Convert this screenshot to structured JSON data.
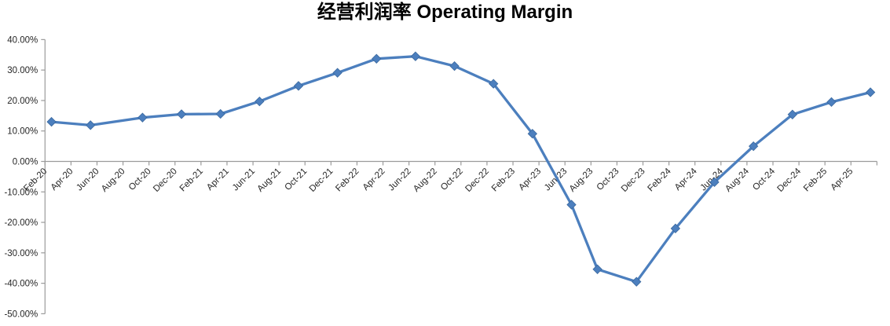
{
  "chart_data": {
    "type": "line",
    "title": "经营利润率 Operating Margin",
    "legend": "none",
    "grid": "off",
    "marker": "diamond",
    "line_color": "#4C7FBE",
    "marker_edge_color": "#3A689E",
    "axis_color": "#9b9b9b",
    "text_color": "#262626",
    "ylim": [
      -50,
      40
    ],
    "y_tick_step": 10,
    "y_tick_values": [
      40,
      30,
      20,
      10,
      0,
      -10,
      -20,
      -30,
      -40,
      -50
    ],
    "y_tick_labels": [
      "40.00%",
      "30.00%",
      "20.00%",
      "10.00%",
      "0.00%",
      "-10.00%",
      "-20.00%",
      "-30.00%",
      "-40.00%",
      "-50.00%"
    ],
    "x_tick_labels": [
      "Feb-20",
      "Apr-20",
      "Jun-20",
      "Aug-20",
      "Oct-20",
      "Dec-20",
      "Feb-21",
      "Apr-21",
      "Jun-21",
      "Aug-21",
      "Oct-21",
      "Dec-21",
      "Feb-22",
      "Apr-22",
      "Jun-22",
      "Aug-22",
      "Oct-22",
      "Dec-22",
      "Feb-23",
      "Apr-23",
      "Jun-23",
      "Aug-23",
      "Oct-23",
      "Dec-23",
      "Feb-24",
      "Apr-24",
      "Jun-24",
      "Aug-24",
      "Oct-24",
      "Dec-24",
      "Feb-25",
      "Apr-25"
    ],
    "series": [
      {
        "name": "Operating Margin",
        "x": [
          "Feb-20",
          "May-20",
          "Sep-20",
          "Dec-20",
          "Mar-21",
          "Jun-21",
          "Sep-21",
          "Dec-21",
          "Mar-22",
          "Jun-22",
          "Sep-22",
          "Dec-22",
          "Mar-23",
          "Jun-23",
          "Aug-23",
          "Nov-23",
          "Feb-24",
          "May-24",
          "Aug-24",
          "Nov-24",
          "Feb-25",
          "May-25"
        ],
        "values": [
          13.0,
          11.9,
          14.4,
          15.5,
          15.6,
          19.7,
          24.8,
          29.1,
          33.7,
          34.5,
          31.3,
          25.5,
          9.1,
          -14.2,
          -35.4,
          -39.5,
          -22.0,
          -6.8,
          5.0,
          15.4,
          19.5,
          22.7
        ]
      }
    ]
  }
}
